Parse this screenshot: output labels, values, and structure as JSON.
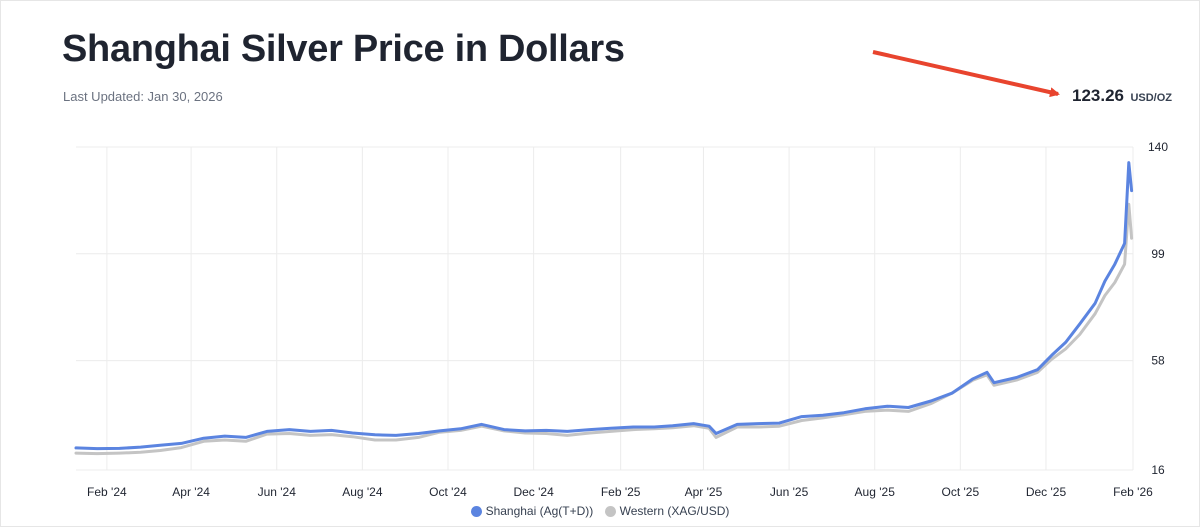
{
  "header": {
    "title": "Shanghai Silver Price in Dollars",
    "last_updated": "Last Updated: Jan 30, 2026",
    "price_value": "123.26",
    "price_unit": "USD/OZ"
  },
  "colors": {
    "shanghai": "#5b84e0",
    "western": "#c4c4c4",
    "arrow": "#e8442e",
    "grid": "#ececec"
  },
  "chart_data": {
    "type": "line",
    "title": "Shanghai Silver Price in Dollars",
    "xlabel": "",
    "ylabel": "",
    "x_tick_labels": [
      "Feb '24",
      "Apr '24",
      "Jun '24",
      "Aug '24",
      "Oct '24",
      "Dec '24",
      "Feb '25",
      "Apr '25",
      "Jun '25",
      "Aug '25",
      "Oct '25",
      "Dec '25",
      "Feb '26"
    ],
    "y_ticks": [
      16,
      58,
      99,
      140
    ],
    "ylim": [
      16,
      140
    ],
    "xlim": [
      "2024-01-10",
      "2026-02-01"
    ],
    "grid": true,
    "y_axis_side": "right",
    "legend_position": "bottom-center",
    "series": [
      {
        "name": "Shanghai (Ag(T+D))",
        "dates": [
          "2024-01-10",
          "2024-01-25",
          "2024-02-10",
          "2024-02-25",
          "2024-03-10",
          "2024-03-25",
          "2024-04-10",
          "2024-04-25",
          "2024-05-10",
          "2024-05-25",
          "2024-06-10",
          "2024-06-25",
          "2024-07-10",
          "2024-07-25",
          "2024-08-10",
          "2024-08-25",
          "2024-09-10",
          "2024-09-25",
          "2024-10-10",
          "2024-10-25",
          "2024-11-10",
          "2024-11-25",
          "2024-12-10",
          "2024-12-25",
          "2025-01-10",
          "2025-01-25",
          "2025-02-10",
          "2025-02-25",
          "2025-03-10",
          "2025-03-25",
          "2025-04-05",
          "2025-04-10",
          "2025-04-25",
          "2025-05-10",
          "2025-05-25",
          "2025-06-10",
          "2025-06-25",
          "2025-07-10",
          "2025-07-25",
          "2025-08-10",
          "2025-08-25",
          "2025-09-10",
          "2025-09-25",
          "2025-10-10",
          "2025-10-20",
          "2025-10-25",
          "2025-11-10",
          "2025-11-25",
          "2025-12-05",
          "2025-12-15",
          "2025-12-25",
          "2026-01-05",
          "2026-01-12",
          "2026-01-19",
          "2026-01-26",
          "2026-01-29",
          "2026-01-31"
        ],
        "values": [
          24.5,
          24.2,
          24.3,
          24.8,
          25.5,
          26.2,
          28.2,
          29.0,
          28.5,
          30.8,
          31.5,
          30.8,
          31.2,
          30.2,
          29.5,
          29.3,
          30.0,
          31.0,
          31.8,
          33.5,
          31.5,
          31.0,
          31.2,
          30.8,
          31.5,
          32.0,
          32.5,
          32.5,
          33.0,
          33.8,
          32.8,
          30.0,
          33.5,
          33.8,
          34.0,
          36.5,
          37.0,
          38.0,
          39.5,
          40.5,
          40.0,
          42.5,
          45.5,
          51.0,
          53.5,
          49.5,
          51.5,
          54.5,
          60.0,
          65.0,
          72.0,
          80.0,
          88.5,
          95.0,
          103.0,
          134.0,
          123.26
        ]
      },
      {
        "name": "Western (XAG/USD)",
        "dates": [
          "2024-01-10",
          "2024-01-25",
          "2024-02-10",
          "2024-02-25",
          "2024-03-10",
          "2024-03-25",
          "2024-04-10",
          "2024-04-25",
          "2024-05-10",
          "2024-05-25",
          "2024-06-10",
          "2024-06-25",
          "2024-07-10",
          "2024-07-25",
          "2024-08-10",
          "2024-08-25",
          "2024-09-10",
          "2024-09-25",
          "2024-10-10",
          "2024-10-25",
          "2024-11-10",
          "2024-11-25",
          "2024-12-10",
          "2024-12-25",
          "2025-01-10",
          "2025-01-25",
          "2025-02-10",
          "2025-02-25",
          "2025-03-10",
          "2025-03-25",
          "2025-04-05",
          "2025-04-10",
          "2025-04-25",
          "2025-05-10",
          "2025-05-25",
          "2025-06-10",
          "2025-06-25",
          "2025-07-10",
          "2025-07-25",
          "2025-08-10",
          "2025-08-25",
          "2025-09-10",
          "2025-09-25",
          "2025-10-10",
          "2025-10-20",
          "2025-10-25",
          "2025-11-10",
          "2025-11-25",
          "2025-12-05",
          "2025-12-15",
          "2025-12-25",
          "2026-01-05",
          "2026-01-12",
          "2026-01-19",
          "2026-01-26",
          "2026-01-29",
          "2026-01-31"
        ],
        "values": [
          22.5,
          22.3,
          22.5,
          22.8,
          23.5,
          24.6,
          27.0,
          27.5,
          27.0,
          29.8,
          30.0,
          29.3,
          29.6,
          28.8,
          27.5,
          27.5,
          28.5,
          30.5,
          31.2,
          32.8,
          31.0,
          30.2,
          30.0,
          29.3,
          30.2,
          30.8,
          31.5,
          31.8,
          32.2,
          33.0,
          32.0,
          28.5,
          32.5,
          32.5,
          32.8,
          35.0,
          36.0,
          37.2,
          38.5,
          39.0,
          38.5,
          41.5,
          45.5,
          50.5,
          52.5,
          48.5,
          50.5,
          53.5,
          58.5,
          62.5,
          68.0,
          76.0,
          83.0,
          88.0,
          95.0,
          118.0,
          105.0
        ]
      }
    ]
  }
}
